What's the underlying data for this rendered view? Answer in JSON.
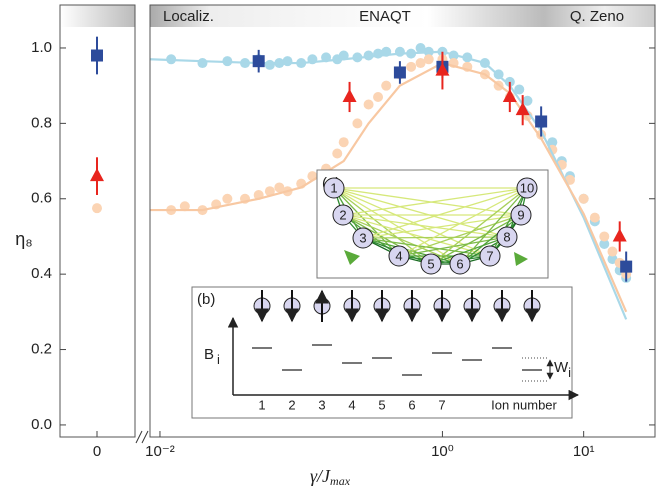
{
  "chart_data": {
    "type": "scatter",
    "regions": [
      "Localiz.",
      "ENAQT",
      "Q. Zeno"
    ],
    "x_label": "γ/J",
    "x_label_sub": "max",
    "y_label": "η₈",
    "x_scale": "log",
    "xlim": [
      0.0085,
      32
    ],
    "xticks": [
      0,
      {
        "value": 0.01,
        "label": "10⁻²"
      },
      {
        "value": 1,
        "label": "10⁰"
      },
      {
        "value": 10,
        "label": "10¹"
      }
    ],
    "ylim": [
      -0.032,
      1.114
    ],
    "yticks": [
      {
        "value": 0,
        "label": "0.0"
      },
      0.2,
      0.4,
      0.6,
      0.8,
      {
        "value": 1,
        "label": "1.0"
      }
    ],
    "series": [
      {
        "marker": "dot",
        "color": "#a9d8e8",
        "x": [
          0.012,
          0.02,
          0.03,
          0.04,
          0.05,
          0.06,
          0.07,
          0.08,
          0.1,
          0.12,
          0.15,
          0.18,
          0.2,
          0.25,
          0.3,
          0.35,
          0.4,
          0.5,
          0.6,
          0.7,
          0.8,
          1,
          1.2,
          1.5,
          2,
          2.5,
          3,
          3.5,
          4,
          5,
          6,
          7,
          8,
          10,
          12,
          14,
          16,
          18,
          20
        ],
        "y": [
          0.97,
          0.96,
          0.965,
          0.96,
          0.97,
          0.955,
          0.96,
          0.965,
          0.96,
          0.97,
          0.975,
          0.97,
          0.98,
          0.975,
          0.98,
          0.985,
          0.99,
          0.99,
          0.985,
          1.0,
          0.99,
          0.99,
          0.98,
          0.975,
          0.96,
          0.93,
          0.91,
          0.89,
          0.86,
          0.8,
          0.75,
          0.7,
          0.66,
          0.6,
          0.54,
          0.48,
          0.44,
          0.41,
          0.39
        ]
      },
      {
        "marker": "dot",
        "color": "#fbd4b4",
        "x": [
          0,
          0.012,
          0.015,
          0.02,
          0.025,
          0.03,
          0.04,
          0.05,
          0.06,
          0.07,
          0.08,
          0.1,
          0.12,
          0.15,
          0.18,
          0.2,
          0.25,
          0.3,
          0.35,
          0.4,
          0.5,
          0.6,
          0.7,
          0.8,
          1,
          1.2,
          1.5,
          2,
          2.5,
          3,
          4,
          5,
          6,
          7,
          8,
          10,
          12,
          14,
          16,
          18,
          20
        ],
        "y": [
          0.575,
          0.57,
          0.58,
          0.57,
          0.585,
          0.6,
          0.6,
          0.61,
          0.62,
          0.63,
          0.62,
          0.64,
          0.66,
          0.68,
          0.72,
          0.75,
          0.8,
          0.85,
          0.87,
          0.9,
          0.93,
          0.95,
          0.96,
          0.97,
          0.97,
          0.96,
          0.95,
          0.93,
          0.9,
          0.87,
          0.82,
          0.77,
          0.73,
          0.69,
          0.65,
          0.6,
          0.55,
          0.5,
          0.46,
          0.43,
          0.4
        ]
      },
      {
        "marker": "line",
        "color": "#a9d8e8",
        "x": [
          0.0085,
          0.02,
          0.05,
          0.1,
          0.2,
          0.5,
          1,
          2,
          3,
          5,
          10,
          20
        ],
        "y": [
          0.97,
          0.965,
          0.96,
          0.96,
          0.97,
          0.985,
          0.99,
          0.96,
          0.9,
          0.78,
          0.55,
          0.28
        ]
      },
      {
        "marker": "line",
        "color": "#f8c8a2",
        "x": [
          0.0085,
          0.02,
          0.05,
          0.1,
          0.2,
          0.3,
          0.5,
          1,
          2,
          3,
          5,
          10,
          20
        ],
        "y": [
          0.57,
          0.57,
          0.6,
          0.63,
          0.7,
          0.8,
          0.9,
          0.96,
          0.93,
          0.88,
          0.76,
          0.56,
          0.3
        ]
      },
      {
        "marker": "square",
        "color": "#2d4b9b",
        "x": [
          0,
          0.05,
          0.5,
          1,
          5,
          20
        ],
        "y": [
          0.98,
          0.965,
          0.935,
          0.95,
          0.805,
          0.42
        ],
        "errors": [
          0.05,
          0.03,
          0.03,
          0.03,
          0.04,
          0.04
        ]
      },
      {
        "marker": "triangle",
        "color": "#e8251e",
        "x": [
          0,
          0.22,
          1,
          3,
          3.7,
          18
        ],
        "y": [
          0.66,
          0.87,
          0.94,
          0.87,
          0.835,
          0.5
        ],
        "errors": [
          0.05,
          0.04,
          0.05,
          0.04,
          0.04,
          0.04
        ]
      }
    ],
    "inset_a": {
      "label": "(a)",
      "ions": [
        "1",
        "2",
        "3",
        "4",
        "5",
        "6",
        "7",
        "8",
        "9",
        "10"
      ]
    },
    "inset_b": {
      "label": "(b)",
      "y_label": "B",
      "y_label_sub": "i",
      "w_label": "W",
      "w_label_sub": "i",
      "ticks": [
        "1",
        "2",
        "3",
        "4",
        "5",
        "6",
        "7"
      ],
      "x_label": "Ion number"
    }
  }
}
